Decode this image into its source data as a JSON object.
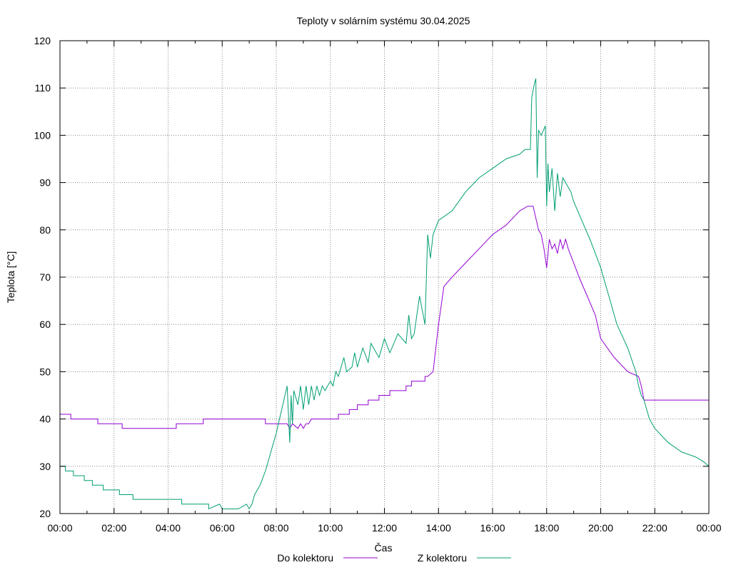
{
  "chart_data": {
    "type": "line",
    "title": "Teploty v solárním systému 30.04.2025",
    "xlabel": "Čas",
    "ylabel": "Teplota [°C]",
    "xlim": [
      0,
      24
    ],
    "ylim": [
      20,
      120
    ],
    "x_tick_labels": [
      "00:00",
      "02:00",
      "04:00",
      "06:00",
      "08:00",
      "10:00",
      "12:00",
      "14:00",
      "16:00",
      "18:00",
      "20:00",
      "22:00",
      "00:00"
    ],
    "y_ticks": [
      20,
      30,
      40,
      50,
      60,
      70,
      80,
      90,
      100,
      110,
      120
    ],
    "grid": true,
    "legend_position": "bottom",
    "series": [
      {
        "name": "Do kolektoru",
        "color": "#9400d3",
        "x": [
          0,
          0.4,
          0.4,
          1.4,
          1.4,
          2.3,
          2.3,
          3.3,
          3.3,
          4.3,
          4.3,
          5.3,
          5.3,
          7.6,
          7.6,
          8.4,
          8.5,
          8.6,
          8.8,
          8.9,
          9.0,
          9.1,
          9.2,
          9.3,
          9.3,
          10.3,
          10.3,
          10.7,
          10.7,
          11.0,
          11.0,
          11.4,
          11.4,
          11.8,
          11.8,
          12.2,
          12.2,
          12.8,
          12.8,
          13.0,
          13.0,
          13.5,
          13.5,
          13.6,
          13.8,
          14.0,
          14.2,
          14.5,
          15.0,
          15.5,
          16.0,
          16.5,
          17.0,
          17.3,
          17.5,
          17.7,
          17.8,
          17.9,
          18.0,
          18.1,
          18.2,
          18.3,
          18.4,
          18.5,
          18.6,
          18.7,
          18.8,
          19.0,
          19.2,
          19.5,
          19.8,
          20.0,
          20.5,
          21.0,
          21.4,
          21.5,
          21.6,
          24
        ],
        "y": [
          41,
          41,
          40,
          40,
          39,
          39,
          38,
          38,
          38,
          38,
          39,
          39,
          40,
          40,
          39,
          39,
          38,
          39,
          38,
          39,
          38,
          39,
          39,
          40,
          40,
          40,
          41,
          41,
          42,
          42,
          43,
          43,
          44,
          44,
          45,
          45,
          46,
          46,
          47,
          47,
          48,
          48,
          49,
          49,
          50,
          60,
          68,
          70,
          73,
          76,
          79,
          81,
          84,
          85,
          85,
          80,
          79,
          76,
          72,
          78,
          76,
          77,
          75,
          78,
          76,
          78,
          76,
          73,
          70,
          66,
          62,
          57,
          53,
          50,
          49,
          47,
          44,
          44
        ]
      },
      {
        "name": "Z kolektoru",
        "color": "#009e73",
        "x": [
          0,
          0.2,
          0.2,
          0.5,
          0.5,
          0.9,
          0.9,
          1.2,
          1.2,
          1.6,
          1.6,
          2.2,
          2.2,
          2.7,
          2.7,
          4.5,
          4.5,
          5.5,
          5.5,
          5.9,
          6.0,
          6.3,
          6.6,
          6.9,
          7.0,
          7.1,
          7.2,
          7.4,
          7.6,
          7.8,
          8.0,
          8.2,
          8.4,
          8.5,
          8.55,
          8.6,
          8.65,
          8.8,
          8.9,
          9.0,
          9.1,
          9.2,
          9.3,
          9.4,
          9.5,
          9.6,
          9.7,
          9.8,
          9.9,
          10.0,
          10.1,
          10.2,
          10.3,
          10.5,
          10.6,
          10.8,
          10.9,
          11.0,
          11.2,
          11.4,
          11.5,
          11.8,
          12.0,
          12.2,
          12.5,
          12.8,
          12.9,
          13.0,
          13.1,
          13.3,
          13.5,
          13.6,
          13.7,
          13.8,
          14.0,
          14.5,
          15.0,
          15.5,
          16.0,
          16.5,
          17.0,
          17.2,
          17.4,
          17.45,
          17.55,
          17.6,
          17.65,
          17.7,
          17.8,
          17.95,
          18.0,
          18.05,
          18.1,
          18.2,
          18.3,
          18.4,
          18.5,
          18.6,
          18.7,
          18.8,
          18.9,
          19.0,
          19.3,
          19.6,
          20.0,
          20.3,
          20.6,
          21.0,
          21.3,
          21.4,
          21.45,
          21.5,
          21.6,
          21.8,
          22.0,
          22.5,
          23.0,
          23.5,
          23.8,
          24
        ],
        "y": [
          30,
          30,
          29,
          29,
          28,
          28,
          27,
          27,
          26,
          26,
          25,
          25,
          24,
          24,
          23,
          23,
          22,
          22,
          21,
          22,
          21,
          21,
          21,
          22,
          21,
          22,
          24,
          26,
          29,
          33,
          37,
          42,
          47,
          35,
          45,
          39,
          46,
          43,
          47,
          42,
          47,
          43,
          47,
          44,
          47,
          45,
          47,
          46,
          47,
          48,
          47,
          50,
          49,
          53,
          50,
          51,
          54,
          51,
          55,
          52,
          56,
          53,
          57,
          54,
          58,
          56,
          62,
          57,
          58,
          66,
          60,
          79,
          74,
          79,
          82,
          84,
          88,
          91,
          93,
          95,
          96,
          97,
          97,
          108,
          111,
          112,
          91,
          101,
          100,
          102,
          85,
          94,
          88,
          93,
          84,
          92,
          87,
          91,
          90,
          89,
          88,
          86,
          82,
          78,
          72,
          66,
          60,
          55,
          50,
          47,
          46,
          45,
          44,
          40,
          38,
          35,
          33,
          32,
          31,
          30
        ]
      }
    ]
  }
}
